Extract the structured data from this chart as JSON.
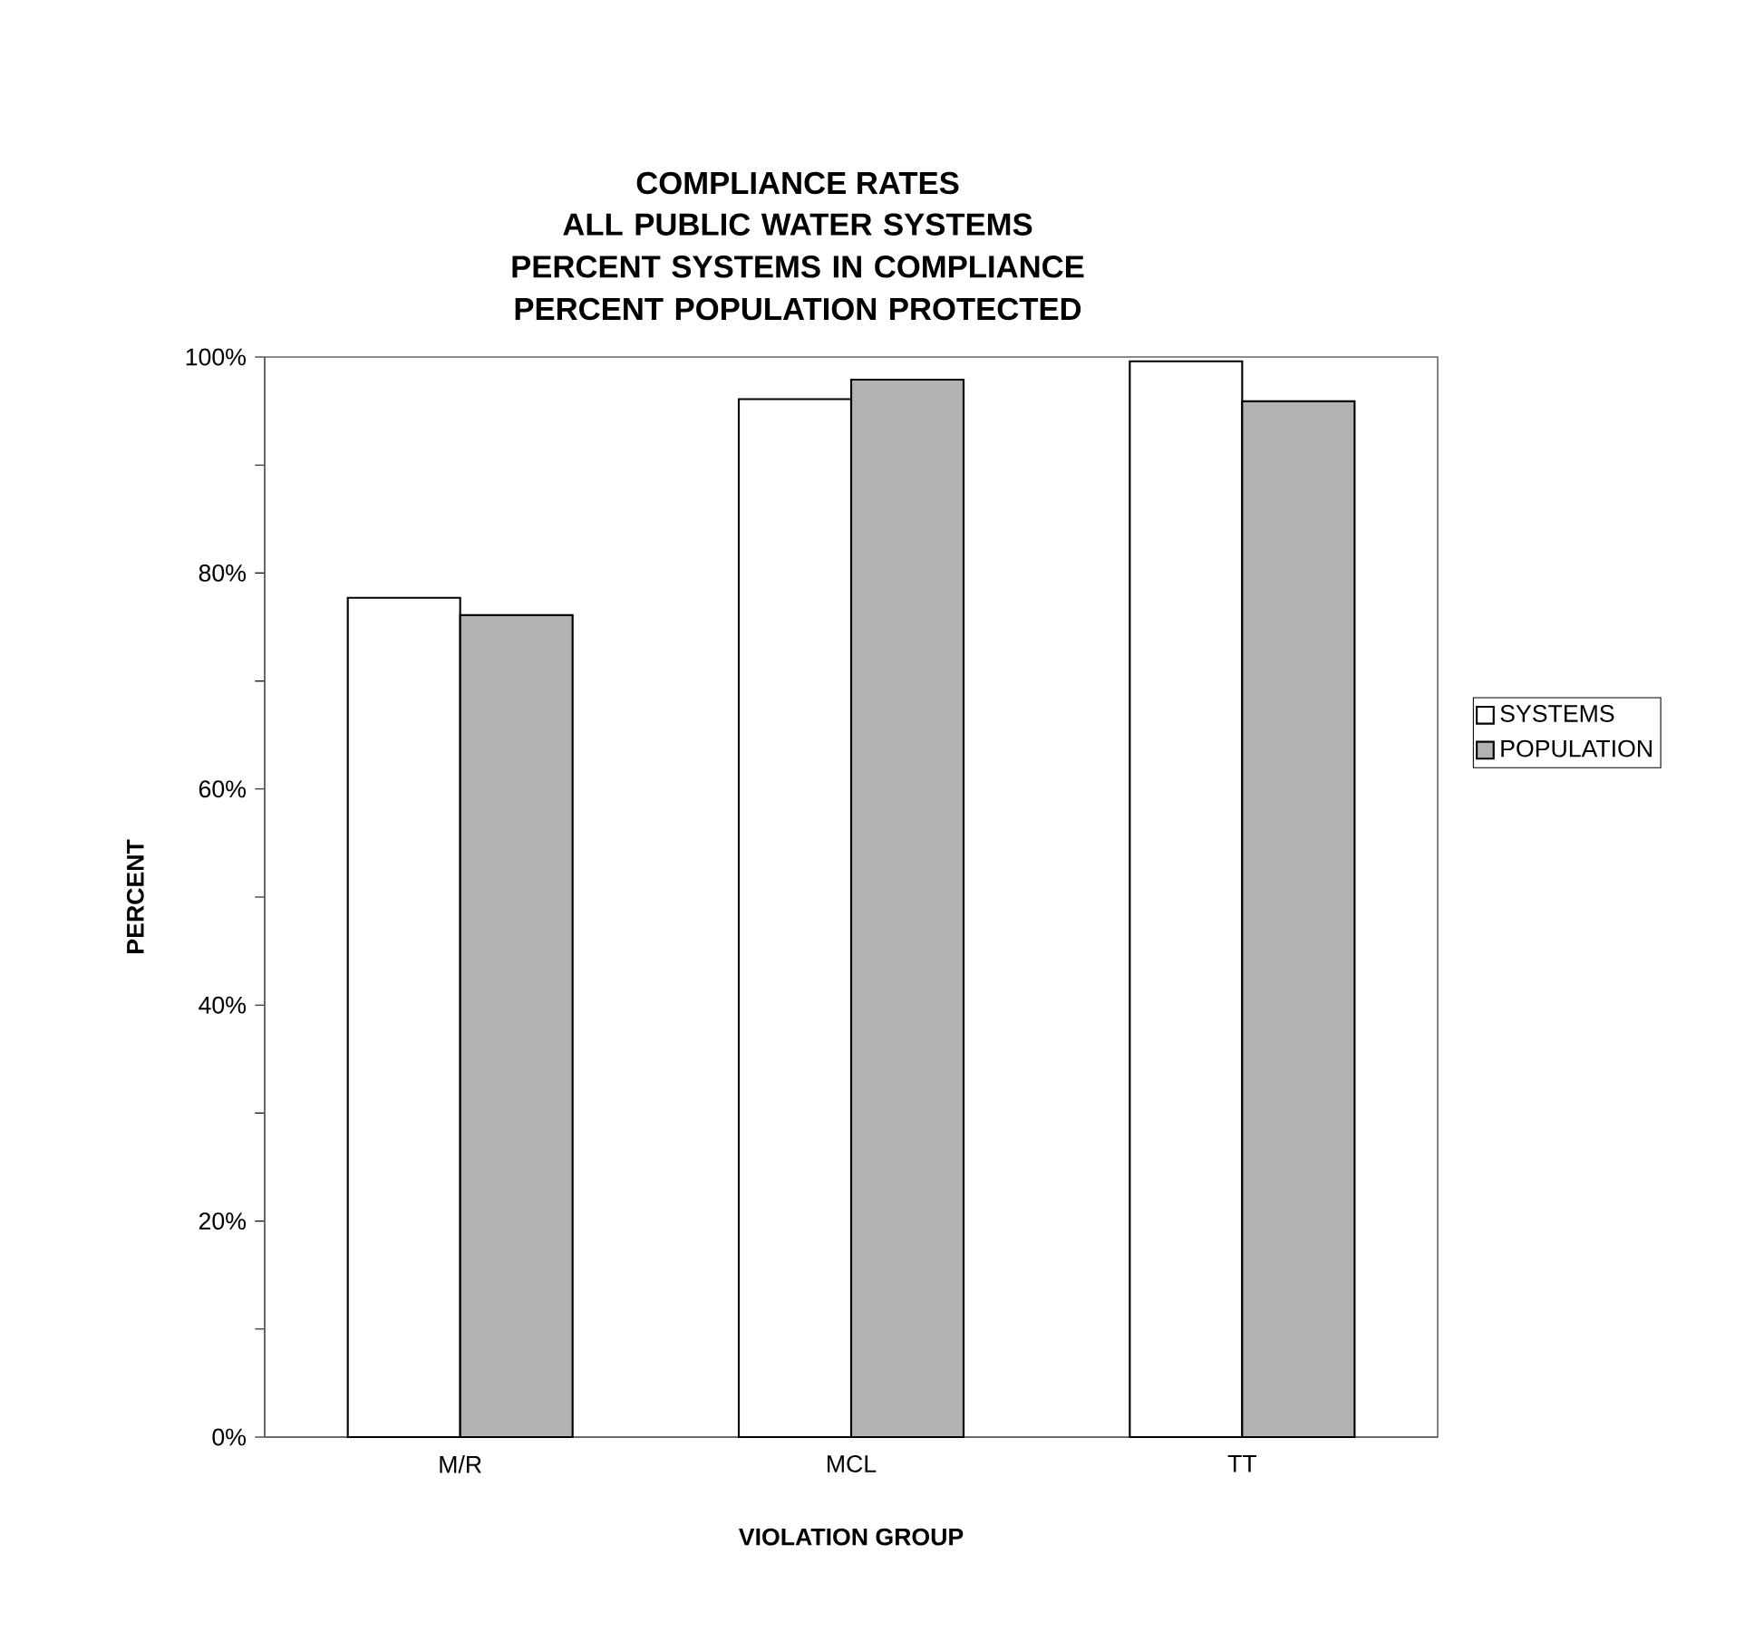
{
  "chart_data": {
    "type": "bar",
    "title": "COMPLIANCE RATES",
    "subtitle": "ALL PUBLIC WATER SYSTEMS PERCENT SYSTEMS IN COMPLIANCE PERCENT POPULATION PROTECTED",
    "xlabel": "VIOLATION GROUP",
    "ylabel": "PERCENT",
    "categories": [
      "M/R",
      "MCL",
      "TT"
    ],
    "series": [
      {
        "name": "SYSTEMS",
        "color": "#ffffff",
        "values": [
          77.7,
          96.1,
          99.6
        ]
      },
      {
        "name": "POPULATION",
        "color": "#b2b2b2",
        "values": [
          76.1,
          97.9,
          95.9
        ]
      }
    ],
    "ylim": [
      0,
      100
    ],
    "yticks": [
      {
        "value": 0,
        "label": "0%"
      },
      {
        "value": 10,
        "label": null
      },
      {
        "value": 20,
        "label": "20%"
      },
      {
        "value": 30,
        "label": null
      },
      {
        "value": 40,
        "label": "40%"
      },
      {
        "value": 50,
        "label": null
      },
      {
        "value": 60,
        "label": "60%"
      },
      {
        "value": 70,
        "label": null
      },
      {
        "value": 80,
        "label": "80%"
      },
      {
        "value": 90,
        "label": null
      },
      {
        "value": 100,
        "label": "100%"
      }
    ],
    "legend": "right",
    "grid": false
  }
}
